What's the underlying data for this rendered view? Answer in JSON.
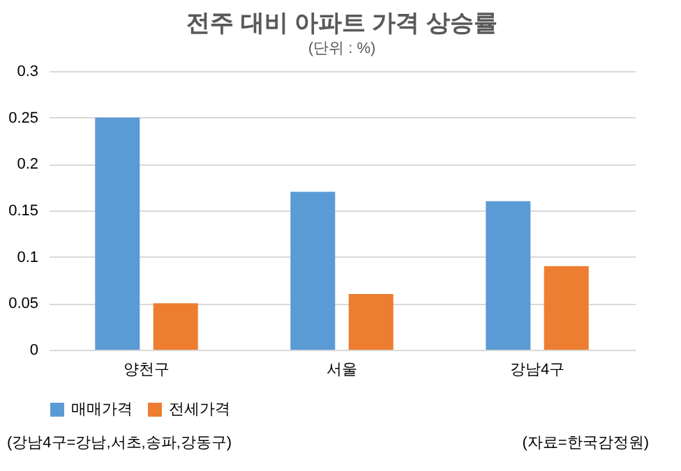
{
  "chart_data": {
    "type": "bar",
    "title": "전주 대비 아파트 가격 상승률",
    "subtitle": "(단위 : %)",
    "categories": [
      "양천구",
      "서울",
      "강남4구"
    ],
    "series": [
      {
        "name": "매매가격",
        "color": "#5b9bd5",
        "values": [
          0.25,
          0.17,
          0.16
        ]
      },
      {
        "name": "전세가격",
        "color": "#ed7d31",
        "values": [
          0.05,
          0.06,
          0.09
        ]
      }
    ],
    "ylim": [
      0,
      0.3
    ],
    "yticks": [
      0,
      0.05,
      0.1,
      0.15,
      0.2,
      0.25,
      0.3
    ],
    "grid": "y",
    "legend": "bottom",
    "annotations": [
      "(강남4구=강남,서초,송파,강동구)",
      "(자료=한국감정원)"
    ]
  }
}
